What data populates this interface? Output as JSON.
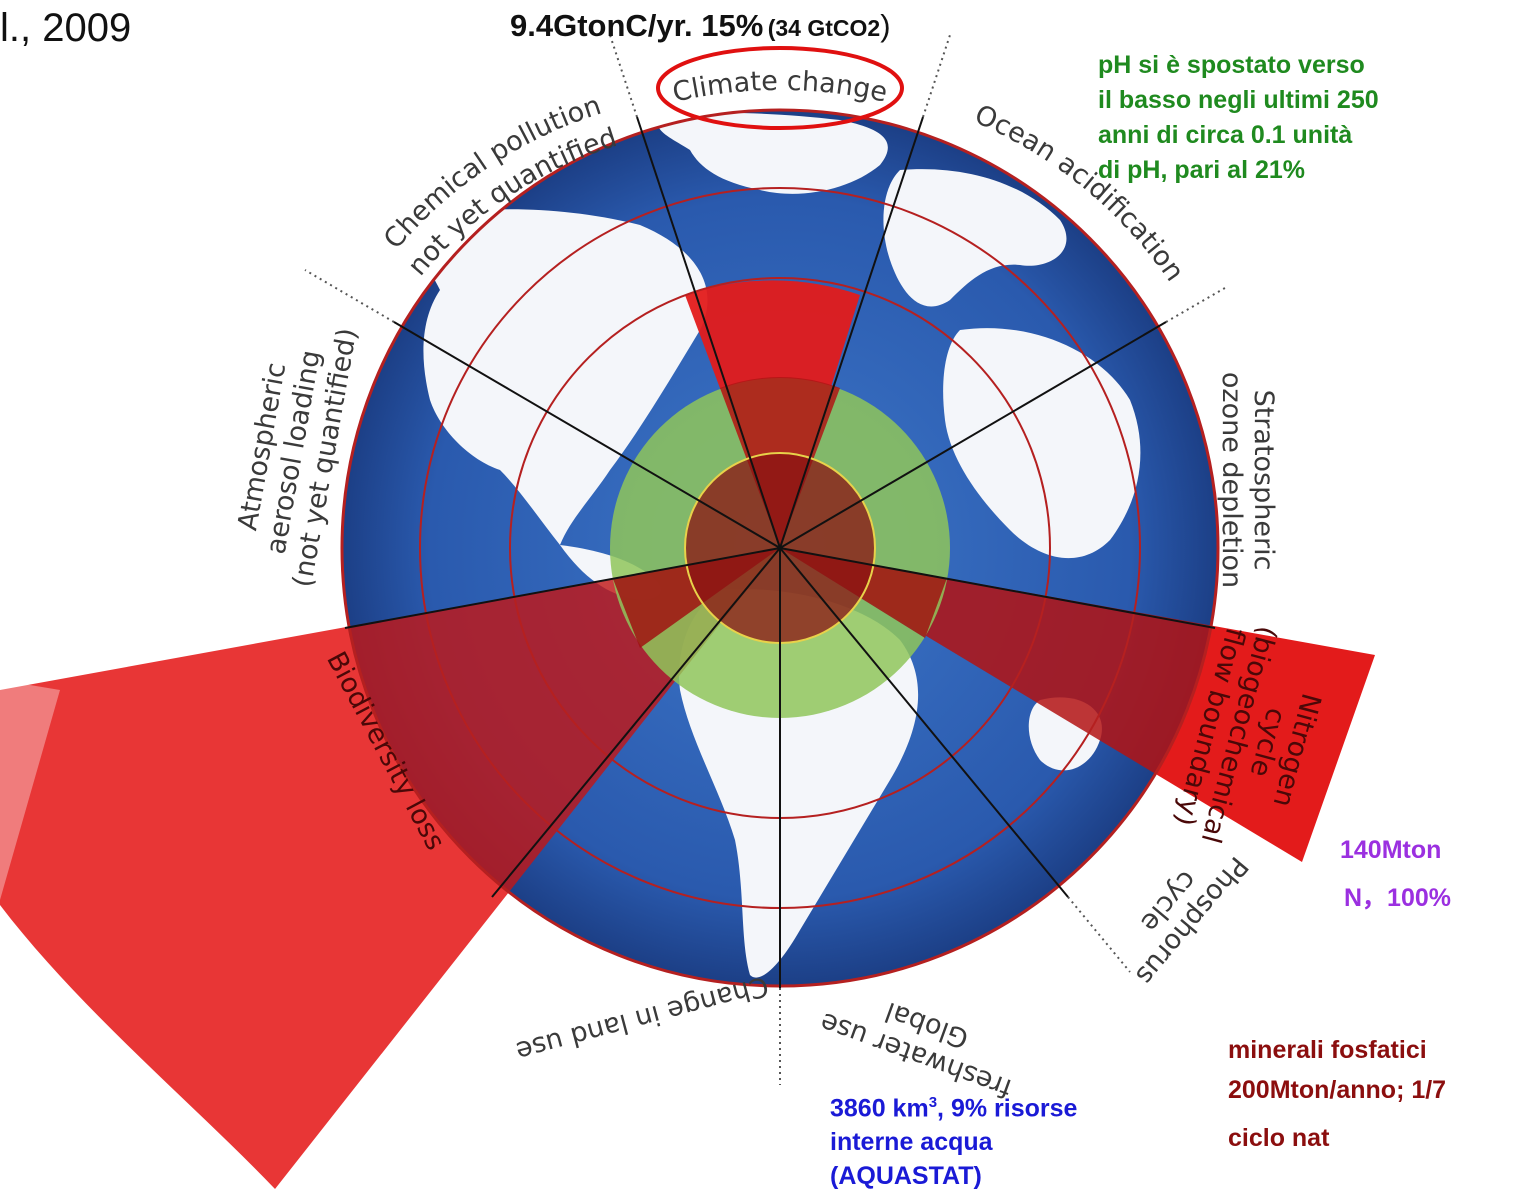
{
  "citation": "l., 2009",
  "header_annotation": {
    "main": "9.4GtonC/yr. 15%",
    "small": "(34 GtCO2",
    "close": ")"
  },
  "boundaries": [
    {
      "name": "Climate change",
      "status": "exceeded"
    },
    {
      "name": "Ocean acidification",
      "status": "within"
    },
    {
      "name": "Stratospheric ozone depletion",
      "status": "within"
    },
    {
      "name": "Nitrogen cycle (biogeochemical flow boundary)",
      "status": "exceeded"
    },
    {
      "name": "Phosphorus cycle",
      "status": "within"
    },
    {
      "name": "Global freshwater use",
      "status": "within"
    },
    {
      "name": "Change in land use",
      "status": "within"
    },
    {
      "name": "Biodiversity loss",
      "status": "exceeded"
    },
    {
      "name": "Atmospheric aerosol loading (not yet quantified)",
      "status": "not quantified"
    },
    {
      "name": "Chemical pollution (not yet quantified)",
      "status": "not quantified"
    }
  ],
  "labels": {
    "climate": "Climate change",
    "chem_1": "Chemical pollution",
    "chem_2": "(not yet quantified)",
    "ocean": "Ocean acidification",
    "strat_1": "Stratospheric",
    "strat_2": "ozone depletion",
    "aero_1": "Atmospheric",
    "aero_2": "aerosol loading",
    "aero_3": "(not yet quantified)",
    "nitro_1": "Nitrogen",
    "nitro_2": "cycle",
    "nitro_3": "(biogeochemical",
    "nitro_4": "flow boundary)",
    "phos_1": "Phosphorus",
    "phos_2": "cycle",
    "fresh_1": "Global",
    "fresh_2": "freshwater use",
    "land": "Change in land use",
    "bio": "Biodiversity loss"
  },
  "annotations": {
    "ocean_note": [
      "pH si è spostato verso",
      "il basso negli ultimi 250",
      "anni di circa 0.1 unità",
      "di pH, pari al 21%"
    ],
    "nitrogen_note": [
      "140Mton",
      "N，100%"
    ],
    "phosphorus_note": [
      "minerali fosfatici",
      "200Mton/anno; 1/7",
      "ciclo nat"
    ],
    "water_note": {
      "line1_a": "3860 km",
      "line1_sup": "3",
      "line1_b": ", 9% risorse",
      "line2": "interne acqua",
      "line3": "(AQUASTAT)"
    }
  },
  "colors": {
    "exceeded": "#e31b1b",
    "safe_zone": "#8fc65a",
    "globe_blue": "#2a5fb0",
    "ocean_note": "#1f8a1f",
    "nitrogen_note": "#9b30e0",
    "phosphorus_note": "#8b0e0e",
    "water_note": "#1a1ad6",
    "highlight_ring": "#e01010"
  }
}
